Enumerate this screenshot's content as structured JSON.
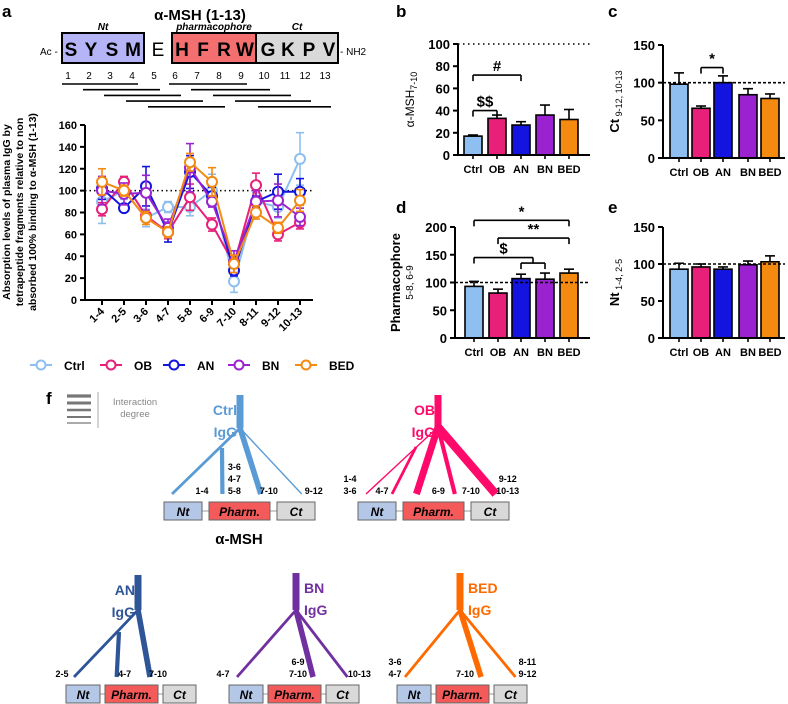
{
  "panel_labels": {
    "a": "a",
    "b": "b",
    "c": "c",
    "d": "d",
    "e": "e",
    "f": "f"
  },
  "colors": {
    "Ctrl": "#8fbff0",
    "OB": "#e8207a",
    "AN": "#1414e0",
    "BN": "#9b22d0",
    "BED": "#f58a10",
    "tree_Ctrl": "#5b9bd5",
    "tree_OB": "#ff0a6a",
    "tree_AN": "#2e5597",
    "tree_BN": "#7030a0",
    "tree_BED": "#ff6a00",
    "nt_box": "#b4b4f6",
    "pharm_box": "#f47070",
    "ct_box": "#d9d9d9",
    "f_nt": "#b4c7e7",
    "f_pharm": "#f45a5a",
    "f_ct": "#d9d9d9"
  },
  "peptide": {
    "title": "α-MSH (1-13)",
    "nt_label": "Nt",
    "pharm_label": "pharmacophore",
    "ct_label": "Ct",
    "prefix": "Ac -",
    "suffix": "- NH2",
    "nt_residues": [
      "S",
      "Y",
      "S",
      "M"
    ],
    "linker": "E",
    "pharm_residues": [
      "H",
      "F",
      "R",
      "W"
    ],
    "ct_residues": [
      "G",
      "K",
      "P",
      "V"
    ],
    "positions": [
      "1",
      "2",
      "3",
      "4",
      "5",
      "6",
      "7",
      "8",
      "9",
      "10",
      "11",
      "12",
      "13"
    ]
  },
  "chart_data": [
    {
      "id": "a",
      "type": "line",
      "ylabel_lines": [
        "Absorption levels of plasma IgG by",
        "tetrapeptide fragments relative to non",
        "absorbed 100% binding to α-MSH (1-13)"
      ],
      "categories": [
        "1-4",
        "2-5",
        "3-6",
        "4-7",
        "5-8",
        "6-9",
        "7-10",
        "8-11",
        "9-12",
        "10-13"
      ],
      "ylim": [
        0,
        160
      ],
      "yticks": [
        0,
        20,
        40,
        60,
        80,
        100,
        120,
        140,
        160
      ],
      "reference_line": 100,
      "legend_position": "bottom",
      "series": [
        {
          "name": "Ctrl",
          "values": [
            90,
            100,
            75,
            85,
            85,
            100,
            17,
            90,
            85,
            129
          ],
          "err": [
            20,
            8,
            8,
            5,
            8,
            15,
            10,
            8,
            10,
            24
          ]
        },
        {
          "name": "OB",
          "values": [
            83,
            108,
            77,
            62,
            94,
            69,
            33,
            105,
            60,
            71
          ],
          "err": [
            6,
            5,
            5,
            6,
            12,
            6,
            6,
            11,
            6,
            6
          ]
        },
        {
          "name": "AN",
          "values": [
            102,
            84,
            104,
            62,
            117,
            95,
            27,
            90,
            99,
            99
          ],
          "err": [
            10,
            3,
            18,
            9,
            15,
            8,
            5,
            5,
            16,
            12
          ]
        },
        {
          "name": "BN",
          "values": [
            100,
            97,
            98,
            66,
            121,
            90,
            35,
            90,
            91,
            76
          ],
          "err": [
            13,
            10,
            16,
            8,
            22,
            5,
            10,
            10,
            15,
            8
          ]
        },
        {
          "name": "BED",
          "values": [
            108,
            100,
            75,
            62,
            126,
            108,
            33,
            80,
            66,
            91
          ],
          "err": [
            12,
            5,
            6,
            5,
            8,
            13,
            8,
            6,
            5,
            10
          ]
        }
      ]
    },
    {
      "id": "b",
      "type": "bar",
      "ylabel": "α-MSH",
      "ylabel_sub": "7-10",
      "categories": [
        "Ctrl",
        "OB",
        "AN",
        "BN",
        "BED"
      ],
      "values": [
        17,
        33,
        27,
        36,
        32
      ],
      "err_top": [
        18,
        36,
        30,
        45,
        41
      ],
      "ylim": [
        0,
        100
      ],
      "yticks": [
        0,
        20,
        40,
        60,
        80,
        100
      ],
      "reference_line": 100,
      "annotations": [
        {
          "text": "$$",
          "from": 0,
          "to": 1,
          "level": 40
        },
        {
          "text": "#",
          "from": 0,
          "to": 2,
          "level": 72
        }
      ]
    },
    {
      "id": "c",
      "type": "bar",
      "ylabel": "Ct",
      "ylabel_sub": " 9-12, 10-13",
      "categories": [
        "Ctrl",
        "OB",
        "AN",
        "BN",
        "BED"
      ],
      "values": [
        98,
        66,
        100,
        84,
        79
      ],
      "err_top": [
        113,
        69,
        109,
        92,
        85
      ],
      "ylim": [
        0,
        150
      ],
      "yticks": [
        0,
        50,
        100,
        150
      ],
      "reference_line": 100,
      "annotations": [
        {
          "text": "*",
          "from": 1,
          "to": 2,
          "level": 120
        }
      ]
    },
    {
      "id": "d",
      "type": "bar",
      "ylabel": "Pharmacophore",
      "ylabel_sub": "5-8, 6-9",
      "categories": [
        "Ctrl",
        "OB",
        "AN",
        "BN",
        "BED"
      ],
      "values": [
        93,
        81,
        107,
        106,
        117
      ],
      "err_top": [
        102,
        88,
        115,
        117,
        124
      ],
      "ylim": [
        0,
        200
      ],
      "yticks": [
        0,
        50,
        100,
        150,
        200
      ],
      "reference_line": 100,
      "annotations": [
        {
          "text": "*",
          "from": 0,
          "to": 4,
          "level": 212
        },
        {
          "text": "**",
          "from": 1,
          "to": 4,
          "level": 180
        },
        {
          "text": "$",
          "from": 0,
          "to": "2-3",
          "level": 145
        }
      ]
    },
    {
      "id": "e",
      "type": "bar",
      "ylabel": "Nt",
      "ylabel_sub": " 1-4, 2-5",
      "categories": [
        "Ctrl",
        "OB",
        "AN",
        "BN",
        "BED"
      ],
      "values": [
        93,
        96,
        93,
        99,
        103
      ],
      "err_top": [
        101,
        100,
        96,
        104,
        111
      ],
      "ylim": [
        0,
        150
      ],
      "yticks": [
        0,
        50,
        100,
        150
      ],
      "reference_line": 100,
      "annotations": []
    }
  ],
  "panel_f": {
    "legend_label_lines": [
      "Interaction",
      "degree"
    ],
    "domain_labels": {
      "nt": "Nt",
      "pharm": "Pharm.",
      "ct": "Ct"
    },
    "caption": "α-MSH",
    "trees": [
      {
        "group": "Ctrl",
        "label_lines": [
          "Ctrl",
          "IgG"
        ],
        "branches": [
          {
            "labels": [
              "1-4"
            ],
            "target": "nt",
            "degree": 2
          },
          {
            "labels": [
              "3-6",
              "4-7",
              "5-8"
            ],
            "target": "pharm-left",
            "degree": 3,
            "sub": true
          },
          {
            "labels": [
              "7-10"
            ],
            "target": "pharm-right",
            "degree": 4
          },
          {
            "labels": [
              "9-12"
            ],
            "target": "ct",
            "degree": 1
          }
        ]
      },
      {
        "group": "OB",
        "label_lines": [
          "OB",
          "IgG"
        ],
        "branches": [
          {
            "labels": [
              "1-4",
              "3-6"
            ],
            "target": "nt",
            "degree": 1
          },
          {
            "labels": [
              "4-7"
            ],
            "target": "nt-right",
            "degree": 2,
            "sub": true
          },
          {
            "labels": [
              "6-9"
            ],
            "target": "pharm-left",
            "degree": 5
          },
          {
            "labels": [
              "7-10"
            ],
            "target": "pharm-right",
            "degree": 3
          },
          {
            "labels": [
              "9-12",
              "10-13"
            ],
            "target": "ct",
            "degree": 6
          }
        ]
      },
      {
        "group": "AN",
        "label_lines": [
          "AN",
          "IgG"
        ],
        "branches": [
          {
            "labels": [
              "2-5"
            ],
            "target": "nt",
            "degree": 2
          },
          {
            "labels": [
              "4-7"
            ],
            "target": "pharm-left",
            "degree": 3,
            "sub": true
          },
          {
            "labels": [
              "7-10"
            ],
            "target": "pharm-right",
            "degree": 4
          }
        ]
      },
      {
        "group": "BN",
        "label_lines": [
          "BN",
          "IgG"
        ],
        "branches": [
          {
            "labels": [
              "4-7"
            ],
            "target": "nt",
            "degree": 2
          },
          {
            "labels": [
              "6-9",
              "7-10"
            ],
            "target": "pharm-right",
            "degree": 4
          },
          {
            "labels": [
              "10-13"
            ],
            "target": "ct",
            "degree": 2
          }
        ]
      },
      {
        "group": "BED",
        "label_lines": [
          "BED",
          "IgG"
        ],
        "branches": [
          {
            "labels": [
              "3-6",
              "4-7"
            ],
            "target": "nt",
            "degree": 2
          },
          {
            "labels": [
              "7-10"
            ],
            "target": "pharm-right",
            "degree": 4
          },
          {
            "labels": [
              "8-11",
              "9-12"
            ],
            "target": "ct",
            "degree": 2
          }
        ]
      }
    ]
  }
}
